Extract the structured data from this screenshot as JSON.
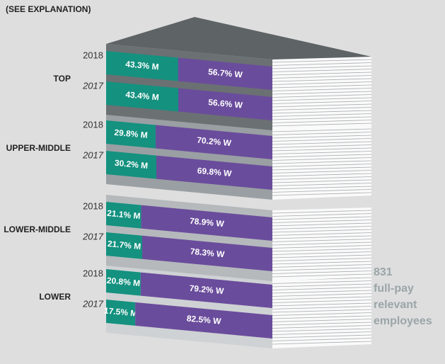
{
  "chart_data": {
    "type": "stacked-bar",
    "subtitle": "(SEE EXPLANATION)",
    "colors": [
      "#14917f",
      "#6a4c9c"
    ],
    "groups": [
      {
        "label": "TOP",
        "rows": [
          {
            "year": "2018",
            "values": [
              43.3,
              56.7
            ],
            "value_labels": [
              "43.3% M",
              "56.7% W"
            ]
          },
          {
            "year": "2017",
            "values": [
              43.4,
              56.6
            ],
            "value_labels": [
              "43.4% M",
              "56.6% W"
            ]
          }
        ]
      },
      {
        "label": "UPPER-MIDDLE",
        "rows": [
          {
            "year": "2018",
            "values": [
              29.8,
              70.2
            ],
            "value_labels": [
              "29.8% M",
              "70.2% W"
            ]
          },
          {
            "year": "2017",
            "values": [
              30.2,
              69.8
            ],
            "value_labels": [
              "30.2% M",
              "69.8% W"
            ]
          }
        ]
      },
      {
        "label": "LOWER-MIDDLE",
        "rows": [
          {
            "year": "2018",
            "values": [
              21.1,
              78.9
            ],
            "value_labels": [
              "21.1% M",
              "78.9% W"
            ]
          },
          {
            "year": "2017",
            "values": [
              21.7,
              78.3
            ],
            "value_labels": [
              "21.7% M",
              "78.3% W"
            ]
          }
        ]
      },
      {
        "label": "LOWER",
        "rows": [
          {
            "year": "2018",
            "values": [
              20.8,
              79.2
            ],
            "value_labels": [
              "20.8% M",
              "79.2% W"
            ]
          },
          {
            "year": "2017",
            "values": [
              17.5,
              82.5
            ],
            "value_labels": [
              "17.5% M",
              "82.5% W"
            ]
          }
        ]
      }
    ],
    "annotation": [
      "831",
      "full-pay",
      "relevant",
      "employees"
    ]
  }
}
